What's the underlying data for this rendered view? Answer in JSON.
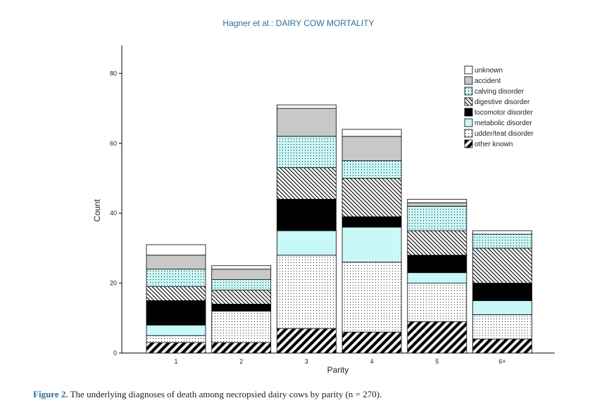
{
  "header": {
    "title": "Hagner et al.: DAIRY COW MORTALITY"
  },
  "caption": {
    "label": "Figure 2.",
    "text": " The underlying diagnoses of death among necropsied dairy cows by parity (n = 270)."
  },
  "chart_data": {
    "type": "bar",
    "stacked": true,
    "title": "",
    "xlabel": "Parity",
    "ylabel": "Count",
    "ylim": [
      0,
      88
    ],
    "yticks": [
      0,
      20,
      40,
      60,
      80
    ],
    "categories": [
      "1",
      "2",
      "3",
      "4",
      "5",
      "6+"
    ],
    "series": [
      {
        "name": "other known",
        "pattern": "diag-heavy",
        "values": [
          3,
          3,
          7,
          6,
          9,
          4
        ]
      },
      {
        "name": "udder/teat disorder",
        "pattern": "dots",
        "values": [
          2,
          9,
          21,
          20,
          11,
          7
        ]
      },
      {
        "name": "metabolic disorder",
        "pattern": "solid",
        "color": "#c8f8f8",
        "values": [
          3,
          0,
          7,
          10,
          3,
          4
        ]
      },
      {
        "name": "locomotor disorder",
        "pattern": "solid",
        "color": "#000000",
        "values": [
          7,
          2,
          9,
          3,
          5,
          5
        ]
      },
      {
        "name": "digestive disorder",
        "pattern": "diag-light",
        "values": [
          4,
          4,
          9,
          11,
          7,
          10
        ]
      },
      {
        "name": "calving disorder",
        "pattern": "cyan-dots",
        "values": [
          5,
          3,
          9,
          5,
          7,
          4
        ]
      },
      {
        "name": "accident",
        "pattern": "solid",
        "color": "#c8c8c8",
        "values": [
          4,
          3,
          8,
          7,
          1,
          0
        ]
      },
      {
        "name": "unknown",
        "pattern": "solid",
        "color": "#ffffff",
        "values": [
          3,
          1,
          1,
          2,
          1,
          1
        ]
      }
    ],
    "legend_order": [
      "unknown",
      "accident",
      "calving disorder",
      "digestive disorder",
      "locomotor disorder",
      "metabolic disorder",
      "udder/teat disorder",
      "other known"
    ],
    "legend_position": "top-right"
  }
}
